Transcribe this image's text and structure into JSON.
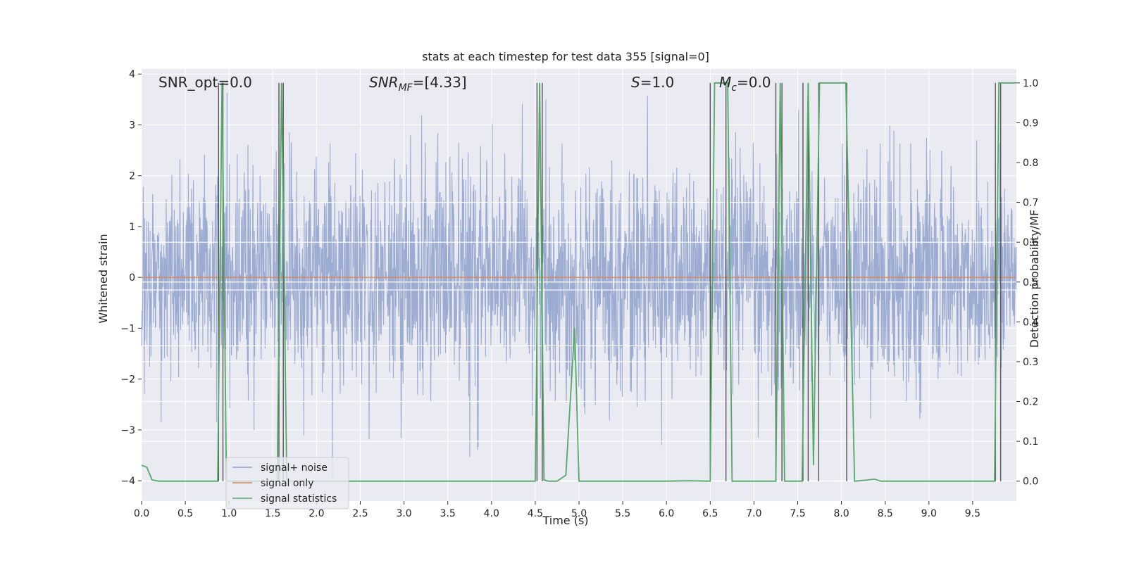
{
  "chart_data": {
    "type": "line",
    "title": "stats at each timestep for test data 355 [signal=0]",
    "xlabel": "Time (s)",
    "ylabel_left": "Whitened strain",
    "ylabel_right": "Detection probability/MF",
    "xlim": [
      0.0,
      10.0
    ],
    "ylim_left": [
      -4.4,
      4.1
    ],
    "ylim_right": [
      -0.05,
      1.035
    ],
    "x_ticks": [
      "0.0",
      "0.5",
      "1.0",
      "1.5",
      "2.0",
      "2.5",
      "3.0",
      "3.5",
      "4.0",
      "4.5",
      "5.0",
      "5.5",
      "6.0",
      "6.5",
      "7.0",
      "7.5",
      "8.0",
      "8.5",
      "9.0",
      "9.5"
    ],
    "x_tick_values": [
      0,
      0.5,
      1,
      1.5,
      2,
      2.5,
      3,
      3.5,
      4,
      4.5,
      5,
      5.5,
      6,
      6.5,
      7,
      7.5,
      8,
      8.5,
      9,
      9.5
    ],
    "y_ticks_left": [
      "−4",
      "−3",
      "−2",
      "−1",
      "0",
      "1",
      "2",
      "3",
      "4"
    ],
    "y_tick_values_left": [
      -4,
      -3,
      -2,
      -1,
      0,
      1,
      2,
      3,
      4
    ],
    "y_ticks_right": [
      "0.0",
      "0.1",
      "0.2",
      "0.3",
      "0.4",
      "0.5",
      "0.6",
      "0.7",
      "0.8",
      "0.9",
      "1.0"
    ],
    "y_tick_values_right": [
      0,
      0.1,
      0.2,
      0.3,
      0.4,
      0.5,
      0.6,
      0.7,
      0.8,
      0.9,
      1.0
    ],
    "grid": true,
    "legend_placement": "lower-left",
    "annotations": {
      "snr_opt": "SNR_opt=0.0",
      "snr_mf_base": "SNR",
      "snr_mf_sub": "MF",
      "snr_mf_value": "=[4.33]",
      "s_base": "S",
      "s_value": "=1.0",
      "mc_base": "M",
      "mc_sub": "c",
      "mc_value": "=0.0"
    },
    "series": [
      {
        "name": "signal+ noise",
        "color": "#8da0cb",
        "axis": "left",
        "description": "whitened noise, std approx 1, range approx -4 to 3.5"
      },
      {
        "name": "signal only",
        "color": "#dd8452",
        "axis": "left",
        "values_constant": 0.0
      },
      {
        "name": "signal statistics",
        "color": "#55a868",
        "axis": "right",
        "x": [
          0.0,
          0.06,
          0.12,
          0.2,
          0.87,
          0.92,
          0.97,
          1.55,
          1.6,
          1.66,
          2.0,
          4.5,
          4.55,
          4.6,
          4.65,
          4.75,
          4.85,
          4.95,
          5.0,
          6.0,
          6.25,
          6.5,
          6.55,
          6.7,
          6.75,
          7.25,
          7.3,
          7.35,
          7.55,
          7.62,
          7.68,
          7.75,
          8.05,
          8.15,
          8.3,
          8.38,
          8.45,
          9.75,
          9.8,
          10.0
        ],
        "y": [
          0.04,
          0.035,
          0.003,
          0.0,
          0.0,
          1.0,
          0.0,
          0.0,
          1.0,
          0.0,
          0.0,
          0.0,
          1.0,
          0.003,
          0.0,
          0.0,
          0.015,
          0.385,
          0.0,
          0.0,
          0.001,
          0.0,
          1.0,
          1.0,
          0.0,
          0.0,
          1.0,
          0.0,
          0.0,
          1.0,
          0.04,
          1.0,
          1.0,
          0.0,
          0.003,
          0.005,
          0.0,
          0.0,
          1.0,
          1.0
        ]
      }
    ],
    "vertical_markers_x": [
      0.88,
      0.93,
      1.57,
      1.62,
      4.52,
      4.58,
      6.5,
      6.68,
      7.25,
      7.32,
      7.56,
      7.62,
      7.74,
      8.06,
      9.76,
      9.82
    ],
    "white_hlines_right": [
      0.7,
      0.6,
      0.5,
      0.48,
      0.34,
      0.3,
      0.2,
      0.1,
      0.0
    ]
  }
}
